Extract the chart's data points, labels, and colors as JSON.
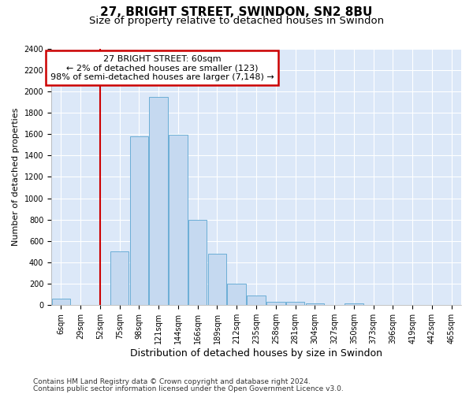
{
  "title1": "27, BRIGHT STREET, SWINDON, SN2 8BU",
  "title2": "Size of property relative to detached houses in Swindon",
  "xlabel": "Distribution of detached houses by size in Swindon",
  "ylabel": "Number of detached properties",
  "footnote1": "Contains HM Land Registry data © Crown copyright and database right 2024.",
  "footnote2": "Contains public sector information licensed under the Open Government Licence v3.0.",
  "categories": [
    "6sqm",
    "29sqm",
    "52sqm",
    "75sqm",
    "98sqm",
    "121sqm",
    "144sqm",
    "166sqm",
    "189sqm",
    "212sqm",
    "235sqm",
    "258sqm",
    "281sqm",
    "304sqm",
    "327sqm",
    "350sqm",
    "373sqm",
    "396sqm",
    "419sqm",
    "442sqm",
    "465sqm"
  ],
  "bar_values": [
    60,
    0,
    0,
    500,
    1580,
    1950,
    1590,
    800,
    480,
    200,
    90,
    35,
    30,
    20,
    0,
    20,
    0,
    0,
    0,
    0,
    0
  ],
  "bar_color": "#c5d9f0",
  "bar_edge_color": "#6baed6",
  "annotation_line1": "27 BRIGHT STREET: 60sqm",
  "annotation_line2": "← 2% of detached houses are smaller (123)",
  "annotation_line3": "98% of semi-detached houses are larger (7,148) →",
  "annotation_box_color": "#ffffff",
  "annotation_box_edge": "#cc0000",
  "vline_color": "#cc0000",
  "vline_xindex": 2,
  "ylim_max": 2400,
  "ytick_step": 200,
  "background_color": "#dce8f8",
  "grid_color": "#ffffff",
  "title1_fontsize": 11,
  "title2_fontsize": 9.5,
  "xlabel_fontsize": 9,
  "ylabel_fontsize": 8,
  "tick_fontsize": 7,
  "ann_fontsize": 8,
  "footnote_fontsize": 6.5
}
